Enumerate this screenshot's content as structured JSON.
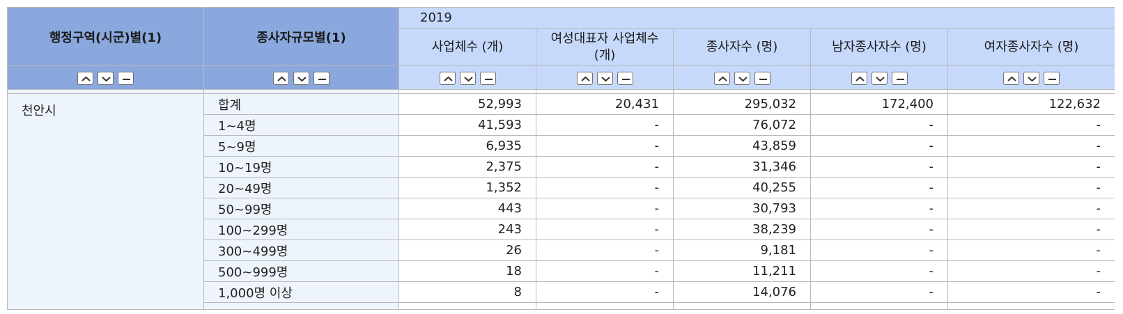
{
  "header": {
    "dim1": "행정구역(시군)별(1)",
    "dim2": "종사자규모별(1)",
    "year": "2019",
    "columns": [
      "사업체수 (개)",
      "여성대표자 사업체수 (개)",
      "종사자수 (명)",
      "남자종사자수 (명)",
      "여자종사자수 (명)"
    ]
  },
  "sort_icons": [
    "chevron-up-icon",
    "chevron-down-icon",
    "minus-icon"
  ],
  "table": {
    "region": "천안시",
    "rows": [
      {
        "size": "합계",
        "values": [
          "52,993",
          "20,431",
          "295,032",
          "172,400",
          "122,632"
        ]
      },
      {
        "size": "1~4명",
        "values": [
          "41,593",
          "-",
          "76,072",
          "-",
          "-"
        ]
      },
      {
        "size": "5~9명",
        "values": [
          "6,935",
          "-",
          "43,859",
          "-",
          "-"
        ]
      },
      {
        "size": "10~19명",
        "values": [
          "2,375",
          "-",
          "31,346",
          "-",
          "-"
        ]
      },
      {
        "size": "20~49명",
        "values": [
          "1,352",
          "-",
          "40,255",
          "-",
          "-"
        ]
      },
      {
        "size": "50~99명",
        "values": [
          "443",
          "-",
          "30,793",
          "-",
          "-"
        ]
      },
      {
        "size": "100~299명",
        "values": [
          "243",
          "-",
          "38,239",
          "-",
          "-"
        ]
      },
      {
        "size": "300~499명",
        "values": [
          "26",
          "-",
          "9,181",
          "-",
          "-"
        ]
      },
      {
        "size": "500~999명",
        "values": [
          "18",
          "-",
          "11,211",
          "-",
          "-"
        ]
      },
      {
        "size": "1,000명 이상",
        "values": [
          "8",
          "-",
          "14,076",
          "-",
          "-"
        ]
      }
    ]
  }
}
